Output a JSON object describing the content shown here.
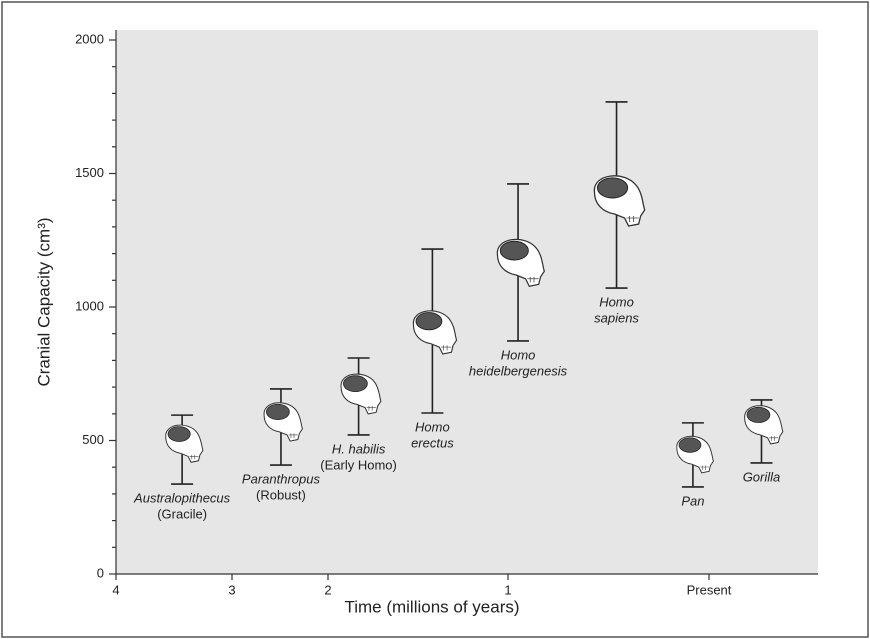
{
  "chart_data": {
    "type": "errorbar",
    "xlabel": "Time (millions of years)",
    "ylabel": "Cranial Capacity (cm³)",
    "categories": [
      [
        "Australopithecus",
        "(Gracile)"
      ],
      [
        "Paranthropus",
        "(Robust)"
      ],
      [
        "H. habilis",
        "(Early Homo)"
      ],
      [
        "Homo",
        "erectus"
      ],
      [
        "Homo",
        "heidelbergenesis"
      ],
      [
        "Homo",
        "sapiens"
      ],
      [
        "Pan"
      ],
      [
        "Gorilla"
      ]
    ],
    "x": [
      3.43,
      2.49,
      1.83,
      1.42,
      0.95,
      0.46,
      0.08,
      -0.26
    ],
    "values": [
      502,
      584,
      689,
      921,
      1183,
      1416,
      461,
      573
    ],
    "low": [
      337,
      408,
      521,
      603,
      873,
      1071,
      326,
      416
    ],
    "high": [
      595,
      693,
      809,
      1217,
      1461,
      1768,
      566,
      652
    ],
    "xlim": [
      4,
      -0.54
    ],
    "xticks": [
      4,
      3,
      2,
      1,
      {
        "value": 0,
        "label": "Present"
      }
    ],
    "ylim": [
      0,
      2000
    ],
    "yticks": [
      0,
      500,
      1000,
      1500,
      2000
    ],
    "yminorticks": [
      100,
      200,
      300,
      400,
      600,
      700,
      800,
      900,
      1100,
      1200,
      1300,
      1400,
      1600,
      1700,
      1800,
      1900
    ]
  }
}
